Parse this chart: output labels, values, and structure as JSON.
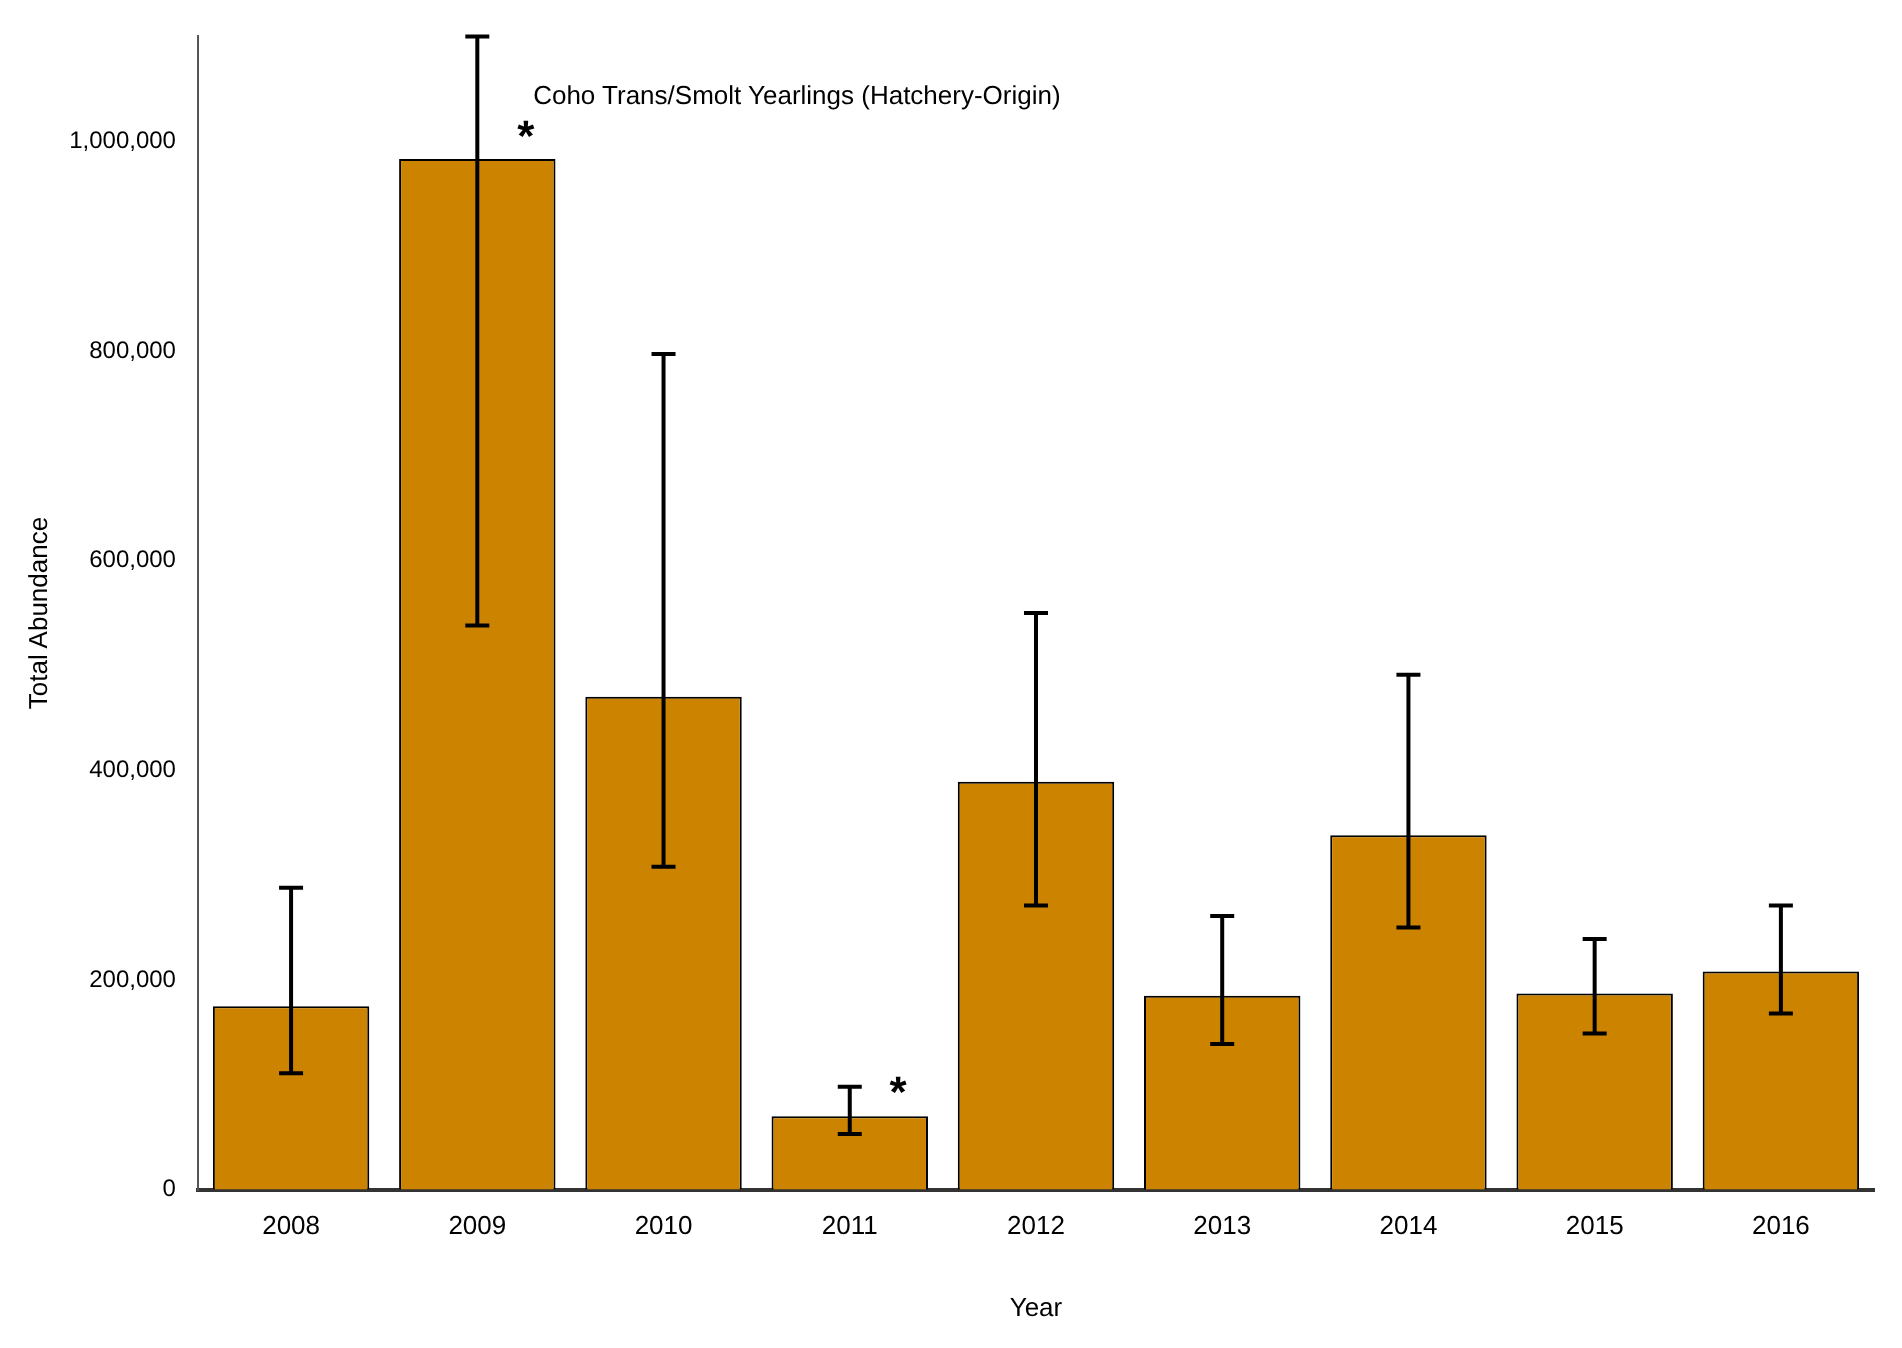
{
  "chart_data": {
    "type": "bar",
    "title": "Coho Trans/Smolt Yearlings (Hatchery-Origin)",
    "xlabel": "Year",
    "ylabel": "Total Abundance",
    "categories": [
      "2008",
      "2009",
      "2010",
      "2011",
      "2012",
      "2013",
      "2014",
      "2015",
      "2016"
    ],
    "values": [
      175000,
      983000,
      470000,
      70000,
      389000,
      185000,
      338000,
      187000,
      208000
    ],
    "errors": [
      [
        111000,
        288000
      ],
      [
        538000,
        1100000
      ],
      [
        308000,
        797000
      ],
      [
        53000,
        98000
      ],
      [
        271000,
        550000
      ],
      [
        139000,
        261000
      ],
      [
        250000,
        491000
      ],
      [
        149000,
        239000
      ],
      [
        168000,
        271000
      ]
    ],
    "color": "#cc8400",
    "ylim": [
      0,
      1100000
    ],
    "yticks": [
      {
        "value": 0,
        "label": "0"
      },
      {
        "value": 200000,
        "label": "200,000"
      },
      {
        "value": 400000,
        "label": "400,000"
      },
      {
        "value": 600000,
        "label": "600,000"
      },
      {
        "value": 800000,
        "label": "800,000"
      },
      {
        "value": 1000000,
        "label": "1,000,000"
      }
    ],
    "annotations": [
      {
        "text": "*",
        "x": "2009",
        "y": 1010000
      },
      {
        "text": "*",
        "x": "2011",
        "y": 98000
      }
    ],
    "grid": false,
    "legend": false
  }
}
